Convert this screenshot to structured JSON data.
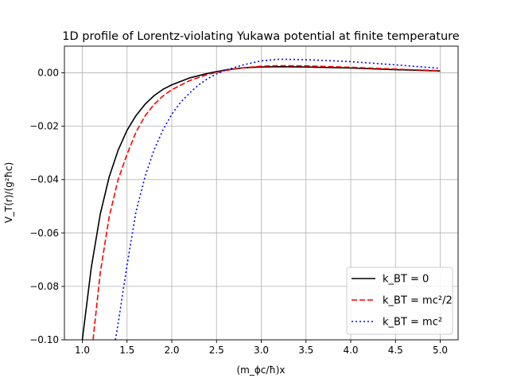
{
  "chart_data": {
    "type": "line",
    "title": "1D profile of Lorentz-violating Yukawa potential at finite temperature",
    "xlabel": "(m_ϕc/ħ)x",
    "ylabel": "V_T(r)/(g²ħc)",
    "xlim": [
      0.8,
      5.2
    ],
    "ylim": [
      -0.1,
      0.01
    ],
    "x_ticks": [
      {
        "v": 1.0,
        "label": "1.0"
      },
      {
        "v": 1.5,
        "label": "1.5"
      },
      {
        "v": 2.0,
        "label": "2.0"
      },
      {
        "v": 2.5,
        "label": "2.5"
      },
      {
        "v": 3.0,
        "label": "3.0"
      },
      {
        "v": 3.5,
        "label": "3.5"
      },
      {
        "v": 4.0,
        "label": "4.0"
      },
      {
        "v": 4.5,
        "label": "4.5"
      },
      {
        "v": 5.0,
        "label": "5.0"
      }
    ],
    "y_ticks": [
      {
        "v": 0.0,
        "label": "0.00"
      },
      {
        "v": -0.02,
        "label": "−0.02"
      },
      {
        "v": -0.04,
        "label": "−0.04"
      },
      {
        "v": -0.06,
        "label": "−0.06"
      },
      {
        "v": -0.08,
        "label": "−0.08"
      },
      {
        "v": -0.1,
        "label": "−0.10"
      }
    ],
    "grid": true,
    "legend_position": "lower-right",
    "series": [
      {
        "name": "k_BT = 0",
        "color": "#000000",
        "dash": "solid",
        "x": [
          1.0,
          1.1,
          1.2,
          1.3,
          1.4,
          1.5,
          1.6,
          1.7,
          1.8,
          1.9,
          2.0,
          2.2,
          2.4,
          2.6,
          2.8,
          3.0,
          3.2,
          3.5,
          4.0,
          4.5,
          5.0
        ],
        "y": [
          -0.1,
          -0.073,
          -0.053,
          -0.039,
          -0.029,
          -0.0215,
          -0.016,
          -0.0118,
          -0.0086,
          -0.0062,
          -0.0045,
          -0.0019,
          -0.0002,
          0.0011,
          0.0019,
          0.0022,
          0.0023,
          0.0022,
          0.0018,
          0.0012,
          0.0007
        ]
      },
      {
        "name": "k_BT = mc²/2",
        "color": "#ff0000",
        "dash": "dashed",
        "x": [
          1.12,
          1.2,
          1.3,
          1.4,
          1.5,
          1.6,
          1.7,
          1.8,
          1.9,
          2.0,
          2.2,
          2.4,
          2.6,
          2.8,
          3.0,
          3.2,
          3.5,
          4.0,
          4.5,
          5.0
        ],
        "y": [
          -0.1,
          -0.075,
          -0.054,
          -0.04,
          -0.0305,
          -0.0222,
          -0.0162,
          -0.0119,
          -0.0087,
          -0.0063,
          -0.0029,
          -0.0006,
          0.0009,
          0.0019,
          0.0025,
          0.0027,
          0.0026,
          0.0021,
          0.0014,
          0.0008
        ]
      },
      {
        "name": "k_BT = mc²",
        "color": "#0000ff",
        "dash": "dotted",
        "x": [
          1.37,
          1.4,
          1.5,
          1.6,
          1.7,
          1.8,
          1.9,
          2.0,
          2.1,
          2.2,
          2.3,
          2.4,
          2.5,
          2.6,
          2.8,
          3.0,
          3.2,
          3.4,
          3.6,
          4.0,
          4.5,
          5.0
        ],
        "y": [
          -0.1,
          -0.094,
          -0.072,
          -0.052,
          -0.039,
          -0.029,
          -0.0215,
          -0.0155,
          -0.011,
          -0.0075,
          -0.0045,
          -0.0022,
          -0.0004,
          0.001,
          0.003,
          0.0045,
          0.0051,
          0.005,
          0.0048,
          0.0042,
          0.003,
          0.0017
        ]
      }
    ]
  }
}
